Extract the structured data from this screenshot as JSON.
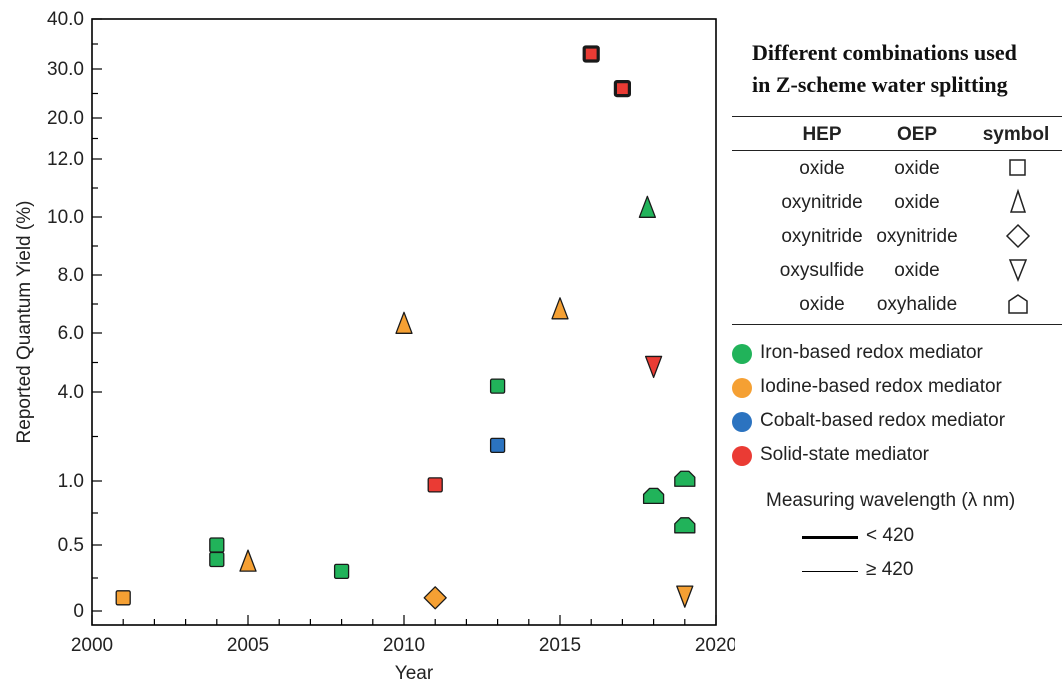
{
  "chart_data": {
    "type": "scatter",
    "xlabel": "Year",
    "ylabel": "Reported Quantum Yield (%)",
    "xlim": [
      2000,
      2020
    ],
    "x_ticks": [
      "2000",
      "2005",
      "2010",
      "2015",
      "2020"
    ],
    "y_tick_labels": [
      "0",
      "0.5",
      "1.0",
      "4.0",
      "6.0",
      "8.0",
      "10.0",
      "12.0",
      "20.0",
      "30.0",
      "40.0"
    ],
    "y_scale": "broken/nonlinear",
    "grid": false,
    "points": [
      {
        "x": 2001,
        "y": 0.1,
        "shape": "square",
        "mediator": "iodine",
        "wavelength": "≥ 420"
      },
      {
        "x": 2004,
        "y": 0.5,
        "shape": "square",
        "mediator": "iron",
        "wavelength": "≥ 420"
      },
      {
        "x": 2004,
        "y": 0.39,
        "shape": "square",
        "mediator": "iron",
        "wavelength": "≥ 420"
      },
      {
        "x": 2005,
        "y": 0.37,
        "shape": "triangle-up",
        "mediator": "iodine",
        "wavelength": "≥ 420"
      },
      {
        "x": 2008,
        "y": 0.3,
        "shape": "square",
        "mediator": "iron",
        "wavelength": "≥ 420"
      },
      {
        "x": 2010,
        "y": 6.3,
        "shape": "triangle-up",
        "mediator": "iodine",
        "wavelength": "≥ 420"
      },
      {
        "x": 2011,
        "y": 0.1,
        "shape": "diamond",
        "mediator": "iodine",
        "wavelength": "≥ 420"
      },
      {
        "x": 2011,
        "y": 0.97,
        "shape": "square",
        "mediator": "solid-state",
        "wavelength": "≥ 420"
      },
      {
        "x": 2013,
        "y": 4.2,
        "shape": "square",
        "mediator": "iron",
        "wavelength": "≥ 420"
      },
      {
        "x": 2013,
        "y": 2.2,
        "shape": "square",
        "mediator": "cobalt",
        "wavelength": "≥ 420"
      },
      {
        "x": 2015,
        "y": 6.8,
        "shape": "triangle-up",
        "mediator": "iodine",
        "wavelength": "≥ 420"
      },
      {
        "x": 2016,
        "y": 33,
        "shape": "square",
        "mediator": "solid-state",
        "wavelength": "< 420"
      },
      {
        "x": 2017,
        "y": 26,
        "shape": "square",
        "mediator": "solid-state",
        "wavelength": "< 420"
      },
      {
        "x": 2017.8,
        "y": 10.3,
        "shape": "triangle-up",
        "mediator": "iron",
        "wavelength": "≥ 420"
      },
      {
        "x": 2018,
        "y": 4.9,
        "shape": "triangle-down",
        "mediator": "solid-state",
        "wavelength": "≥ 420"
      },
      {
        "x": 2018,
        "y": 0.88,
        "shape": "pentagon",
        "mediator": "iron",
        "wavelength": "≥ 420"
      },
      {
        "x": 2019,
        "y": 1.06,
        "shape": "pentagon",
        "mediator": "iron",
        "wavelength": "≥ 420"
      },
      {
        "x": 2019,
        "y": 0.65,
        "shape": "pentagon",
        "mediator": "iron",
        "wavelength": "≥ 420"
      },
      {
        "x": 2019,
        "y": 0.12,
        "shape": "triangle-down",
        "mediator": "iodine",
        "wavelength": "≥ 420"
      }
    ],
    "mediator_colors": {
      "iron": "#21b35a",
      "iodine": "#f5a033",
      "cobalt": "#2b73c0",
      "solid-state": "#ea3b34"
    }
  },
  "legend": {
    "title_line1": "Different combinations used",
    "title_line2": "in Z-scheme water splitting",
    "headers": [
      "HEP",
      "OEP",
      "symbol"
    ],
    "rows": [
      {
        "hep": "oxide",
        "oep": "oxide",
        "symbol": "square"
      },
      {
        "hep": "oxynitride",
        "oep": "oxide",
        "symbol": "triangle-up"
      },
      {
        "hep": "oxynitride",
        "oep": "oxynitride",
        "symbol": "diamond"
      },
      {
        "hep": "oxysulfide",
        "oep": "oxide",
        "symbol": "triangle-down"
      },
      {
        "hep": "oxide",
        "oep": "oxyhalide",
        "symbol": "pentagon"
      }
    ],
    "mediators": [
      {
        "key": "iron",
        "label": "Iron-based redox mediator"
      },
      {
        "key": "iodine",
        "label": "Iodine-based redox mediator"
      },
      {
        "key": "cobalt",
        "label": "Cobalt-based redox mediator"
      },
      {
        "key": "solid-state",
        "label": "Solid-state mediator"
      }
    ],
    "wavelength_title": "Measuring wavelength (λ nm)",
    "wavelength_items": [
      {
        "label": "< 420",
        "style": "thick"
      },
      {
        "label": "≥ 420",
        "style": "thin"
      }
    ]
  }
}
